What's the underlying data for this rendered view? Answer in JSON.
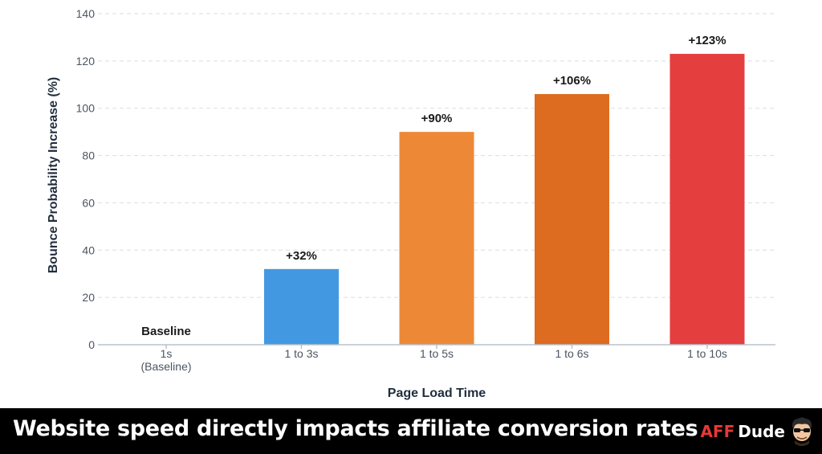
{
  "chart_data": {
    "type": "bar",
    "categories": [
      "1s\n(Baseline)",
      "1 to 3s",
      "1 to 5s",
      "1 to 6s",
      "1 to 10s"
    ],
    "values": [
      0,
      32,
      90,
      106,
      123
    ],
    "data_labels": [
      "Baseline",
      "+32%",
      "+90%",
      "+106%",
      "+123%"
    ],
    "colors": [
      "#ffffff",
      "#4299e1",
      "#ed8936",
      "#dd6b20",
      "#e53e3e"
    ],
    "xlabel": "Page Load Time",
    "ylabel": "Bounce Probability Increase (%)",
    "ylim": [
      0,
      140
    ],
    "yticks": [
      0,
      20,
      40,
      60,
      80,
      100,
      120,
      140
    ],
    "grid": true
  },
  "footer": {
    "headline": "Website speed directly impacts affiliate conversion rates",
    "brand_aff": "AFF",
    "brand_dude": "Dude",
    "avatar_icon": "dude-avatar-icon"
  }
}
